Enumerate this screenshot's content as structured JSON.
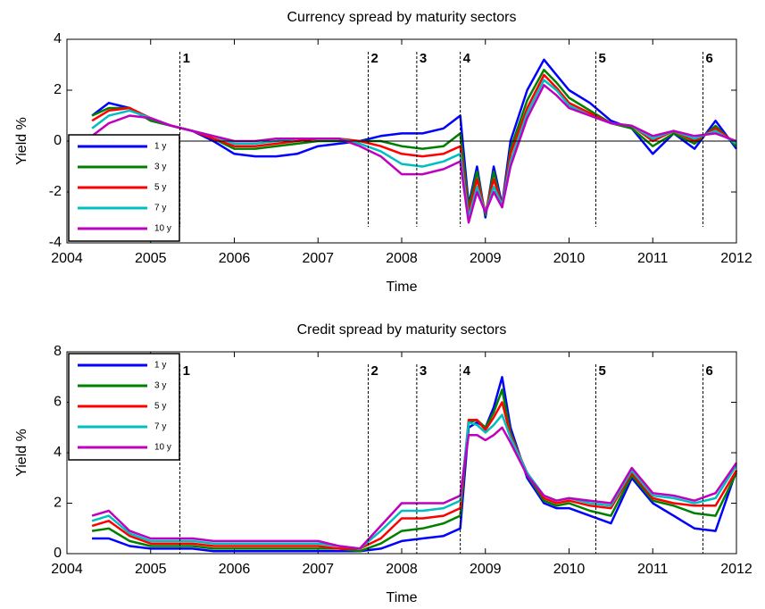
{
  "chart_data": [
    {
      "type": "line",
      "title": "Currency spread by maturity sectors",
      "x_label": "Time",
      "y_label": "Yield %",
      "x": [
        2004.3,
        2004.5,
        2004.75,
        2005.0,
        2005.25,
        2005.5,
        2005.75,
        2006.0,
        2006.25,
        2006.5,
        2006.75,
        2007.0,
        2007.25,
        2007.5,
        2007.75,
        2008.0,
        2008.25,
        2008.5,
        2008.7,
        2008.8,
        2008.9,
        2009.0,
        2009.1,
        2009.2,
        2009.3,
        2009.5,
        2009.7,
        2009.85,
        2010.0,
        2010.25,
        2010.5,
        2010.75,
        2011.0,
        2011.25,
        2011.5,
        2011.75,
        2012.0
      ],
      "series": [
        {
          "name": "1 y",
          "color": "#0000ff",
          "values": [
            1.0,
            1.5,
            1.3,
            0.8,
            0.6,
            0.4,
            0.0,
            -0.5,
            -0.6,
            -0.6,
            -0.5,
            -0.2,
            -0.1,
            0.0,
            0.2,
            0.3,
            0.3,
            0.5,
            1.0,
            -2.5,
            -1.0,
            -3.0,
            -1.0,
            -2.5,
            0.0,
            2.0,
            3.2,
            2.6,
            2.0,
            1.5,
            0.8,
            0.5,
            -0.5,
            0.3,
            -0.3,
            0.8,
            -0.3
          ]
        },
        {
          "name": "3 y",
          "color": "#008000",
          "values": [
            1.0,
            1.3,
            1.3,
            0.8,
            0.6,
            0.4,
            0.1,
            -0.3,
            -0.3,
            -0.2,
            -0.1,
            0.0,
            0.0,
            0.0,
            0.0,
            -0.2,
            -0.3,
            -0.2,
            0.3,
            -2.6,
            -1.2,
            -2.9,
            -1.2,
            -2.6,
            -0.3,
            1.6,
            2.8,
            2.3,
            1.7,
            1.2,
            0.7,
            0.5,
            -0.2,
            0.3,
            -0.1,
            0.6,
            -0.2
          ]
        },
        {
          "name": "5 y",
          "color": "#ff0000",
          "values": [
            0.8,
            1.2,
            1.3,
            0.9,
            0.6,
            0.4,
            0.1,
            -0.2,
            -0.2,
            -0.1,
            0.0,
            0.1,
            0.1,
            0.0,
            -0.2,
            -0.5,
            -0.6,
            -0.5,
            -0.2,
            -2.8,
            -1.5,
            -2.8,
            -1.5,
            -2.5,
            -0.5,
            1.3,
            2.6,
            2.1,
            1.5,
            1.1,
            0.7,
            0.6,
            0.0,
            0.4,
            0.0,
            0.5,
            -0.1
          ]
        },
        {
          "name": "7 y",
          "color": "#00bfbf",
          "values": [
            0.5,
            1.0,
            1.2,
            0.9,
            0.6,
            0.4,
            0.2,
            -0.1,
            -0.1,
            0.0,
            0.1,
            0.1,
            0.1,
            -0.1,
            -0.4,
            -0.9,
            -1.0,
            -0.8,
            -0.5,
            -3.0,
            -1.8,
            -2.8,
            -1.8,
            -2.5,
            -0.8,
            1.1,
            2.4,
            2.0,
            1.4,
            1.0,
            0.7,
            0.6,
            0.1,
            0.4,
            0.1,
            0.4,
            -0.1
          ]
        },
        {
          "name": "10 y",
          "color": "#bf00bf",
          "values": [
            0.2,
            0.7,
            1.0,
            0.9,
            0.6,
            0.4,
            0.2,
            0.0,
            0.0,
            0.1,
            0.1,
            0.1,
            0.1,
            -0.2,
            -0.6,
            -1.3,
            -1.3,
            -1.1,
            -0.8,
            -3.2,
            -2.0,
            -2.8,
            -2.0,
            -2.6,
            -1.0,
            0.9,
            2.2,
            1.8,
            1.3,
            1.0,
            0.7,
            0.6,
            0.2,
            0.4,
            0.2,
            0.3,
            0.0
          ]
        }
      ],
      "xlim": [
        2004,
        2012
      ],
      "xticks": [
        2004,
        2005,
        2006,
        2007,
        2008,
        2009,
        2010,
        2011,
        2012
      ],
      "ylim": [
        -4,
        4
      ],
      "yticks": [
        -4,
        -2,
        0,
        2,
        4
      ],
      "events": [
        {
          "value": 2005.35,
          "label": "1"
        },
        {
          "value": 2007.6,
          "label": "2"
        },
        {
          "value": 2008.18,
          "label": "3"
        },
        {
          "value": 2008.7,
          "label": "4"
        },
        {
          "value": 2010.32,
          "label": "5"
        },
        {
          "value": 2011.6,
          "label": "6"
        }
      ],
      "zero_line": true,
      "legend": "lower left"
    },
    {
      "type": "line",
      "title": "Credit spread by maturity sectors",
      "x_label": "Time",
      "y_label": "Yield %",
      "x": [
        2004.3,
        2004.5,
        2004.75,
        2005.0,
        2005.25,
        2005.5,
        2005.75,
        2006.0,
        2006.25,
        2006.5,
        2006.75,
        2007.0,
        2007.25,
        2007.5,
        2007.75,
        2008.0,
        2008.25,
        2008.5,
        2008.7,
        2008.8,
        2008.9,
        2009.0,
        2009.1,
        2009.2,
        2009.3,
        2009.5,
        2009.7,
        2009.85,
        2010.0,
        2010.25,
        2010.5,
        2010.75,
        2011.0,
        2011.25,
        2011.5,
        2011.75,
        2012.0
      ],
      "series": [
        {
          "name": "1 y",
          "color": "#0000ff",
          "values": [
            0.6,
            0.6,
            0.3,
            0.2,
            0.2,
            0.2,
            0.1,
            0.1,
            0.1,
            0.1,
            0.1,
            0.1,
            0.1,
            0.1,
            0.2,
            0.5,
            0.6,
            0.7,
            1.0,
            5.0,
            5.2,
            5.0,
            5.8,
            7.0,
            5.0,
            3.0,
            2.0,
            1.8,
            1.8,
            1.5,
            1.2,
            3.0,
            2.0,
            1.5,
            1.0,
            0.9,
            3.3
          ]
        },
        {
          "name": "3 y",
          "color": "#008000",
          "values": [
            0.9,
            1.0,
            0.5,
            0.3,
            0.3,
            0.3,
            0.2,
            0.2,
            0.2,
            0.2,
            0.2,
            0.2,
            0.2,
            0.1,
            0.4,
            0.9,
            1.0,
            1.2,
            1.5,
            5.2,
            5.3,
            5.0,
            5.6,
            6.5,
            4.8,
            3.1,
            2.1,
            1.9,
            2.0,
            1.7,
            1.5,
            3.1,
            2.1,
            1.9,
            1.6,
            1.5,
            3.2
          ]
        },
        {
          "name": "5 y",
          "color": "#ff0000",
          "values": [
            1.1,
            1.3,
            0.7,
            0.4,
            0.4,
            0.4,
            0.3,
            0.3,
            0.3,
            0.3,
            0.3,
            0.3,
            0.2,
            0.2,
            0.6,
            1.4,
            1.4,
            1.5,
            1.8,
            5.3,
            5.3,
            4.9,
            5.4,
            6.0,
            4.7,
            3.2,
            2.2,
            2.0,
            2.1,
            1.9,
            1.8,
            3.2,
            2.2,
            2.0,
            1.9,
            1.9,
            3.3
          ]
        },
        {
          "name": "7 y",
          "color": "#00bfbf",
          "values": [
            1.3,
            1.5,
            0.8,
            0.5,
            0.5,
            0.5,
            0.4,
            0.4,
            0.4,
            0.4,
            0.4,
            0.4,
            0.3,
            0.2,
            0.9,
            1.7,
            1.7,
            1.8,
            2.1,
            5.2,
            5.1,
            4.8,
            5.1,
            5.5,
            4.6,
            3.2,
            2.3,
            2.1,
            2.2,
            2.0,
            1.9,
            3.3,
            2.3,
            2.2,
            2.0,
            2.2,
            3.5
          ]
        },
        {
          "name": "10 y",
          "color": "#bf00bf",
          "values": [
            1.5,
            1.7,
            0.9,
            0.6,
            0.6,
            0.6,
            0.5,
            0.5,
            0.5,
            0.5,
            0.5,
            0.5,
            0.3,
            0.2,
            1.1,
            2.0,
            2.0,
            2.0,
            2.3,
            4.7,
            4.7,
            4.5,
            4.7,
            5.0,
            4.4,
            3.1,
            2.3,
            2.1,
            2.2,
            2.1,
            2.0,
            3.4,
            2.4,
            2.3,
            2.1,
            2.4,
            3.6
          ]
        }
      ],
      "xlim": [
        2004,
        2012
      ],
      "xticks": [
        2004,
        2005,
        2006,
        2007,
        2008,
        2009,
        2010,
        2011,
        2012
      ],
      "ylim": [
        0,
        8
      ],
      "yticks": [
        0,
        2,
        4,
        6,
        8
      ],
      "events": [
        {
          "value": 2005.35,
          "label": "1"
        },
        {
          "value": 2007.6,
          "label": "2"
        },
        {
          "value": 2008.18,
          "label": "3"
        },
        {
          "value": 2008.7,
          "label": "4"
        },
        {
          "value": 2010.32,
          "label": "5"
        },
        {
          "value": 2011.6,
          "label": "6"
        }
      ],
      "zero_line": false,
      "legend": "upper left"
    }
  ]
}
